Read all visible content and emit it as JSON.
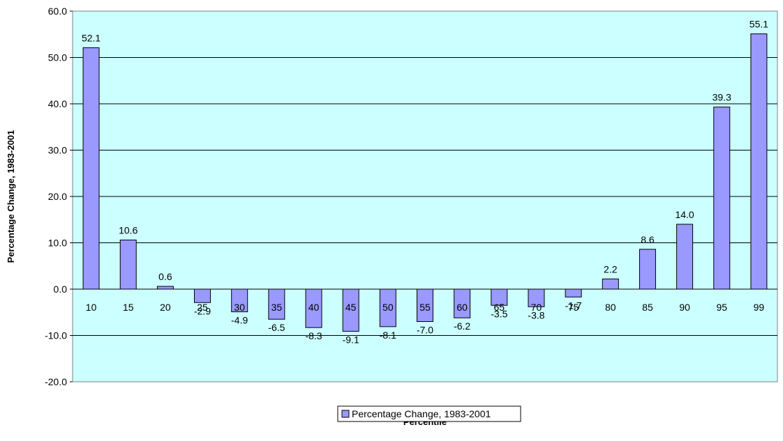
{
  "chart_data": {
    "type": "bar",
    "title": "",
    "xlabel": "Percentile",
    "ylabel": "Percentage Change, 1983-2001",
    "categories": [
      "10",
      "15",
      "20",
      "25",
      "30",
      "35",
      "40",
      "45",
      "50",
      "55",
      "60",
      "65",
      "70",
      "75",
      "80",
      "85",
      "90",
      "95",
      "99"
    ],
    "series": [
      {
        "name": "Percentage Change, 1983-2001",
        "values": [
          52.1,
          10.6,
          0.6,
          -2.9,
          -4.9,
          -6.5,
          -8.3,
          -9.1,
          -8.1,
          -7.0,
          -6.2,
          -3.5,
          -3.8,
          -1.7,
          2.2,
          8.6,
          14.0,
          39.3,
          55.1
        ],
        "data_labels": [
          "52.1",
          "10.6",
          "0.6",
          "-2.9",
          "-4.9",
          "-6.5",
          "-8.3",
          "-9.1",
          "-8.1",
          "-7.0",
          "-6.2",
          "-3.5",
          "-3.8",
          "-1.7",
          "2.2",
          "8.6",
          "14.0",
          "39.3",
          "55.1"
        ]
      }
    ],
    "ylim": [
      -20,
      60
    ],
    "yticks": [
      -20,
      -10,
      0,
      10,
      20,
      30,
      40,
      50,
      60
    ],
    "ytick_labels": [
      "-20.0",
      "-10.0",
      "0.0",
      "10.0",
      "20.0",
      "30.0",
      "40.0",
      "50.0",
      "60.0"
    ],
    "grid": true,
    "legend_position": "bottom",
    "colors": {
      "plot_background": "#CCFFFF",
      "bar_fill": "#9999FF",
      "bar_stroke": "#000000",
      "gridline": "#000000"
    }
  }
}
